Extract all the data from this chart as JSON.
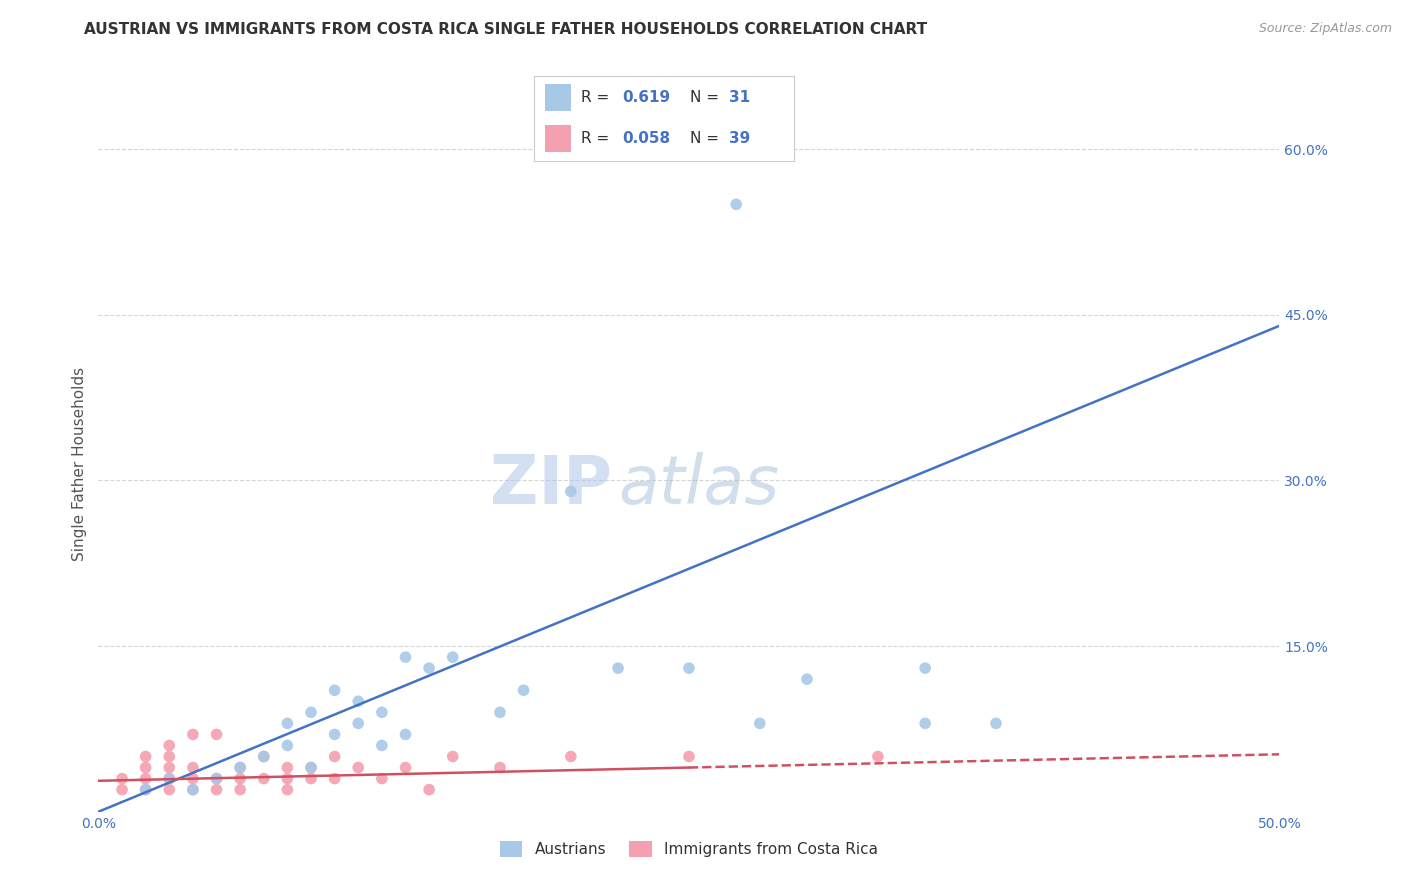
{
  "title": "AUSTRIAN VS IMMIGRANTS FROM COSTA RICA SINGLE FATHER HOUSEHOLDS CORRELATION CHART",
  "source": "Source: ZipAtlas.com",
  "ylabel": "Single Father Households",
  "xmin": 0.0,
  "xmax": 0.5,
  "ymin": 0.0,
  "ymax": 0.63,
  "yticks": [
    0.0,
    0.15,
    0.3,
    0.45,
    0.6
  ],
  "xticks": [
    0.0,
    0.1,
    0.2,
    0.3,
    0.4,
    0.5
  ],
  "blue_R": 0.619,
  "blue_N": 31,
  "pink_R": 0.058,
  "pink_N": 39,
  "blue_color": "#a8c8e8",
  "pink_color": "#f4a0b0",
  "blue_line_color": "#4472c4",
  "pink_line_color": "#d05060",
  "legend_label_blue": "Austrians",
  "legend_label_pink": "Immigrants from Costa Rica",
  "watermark_zip": "ZIP",
  "watermark_atlas": "atlas",
  "blue_scatter_x": [
    0.02,
    0.03,
    0.04,
    0.05,
    0.06,
    0.07,
    0.08,
    0.09,
    0.1,
    0.11,
    0.12,
    0.13,
    0.14,
    0.08,
    0.09,
    0.1,
    0.11,
    0.12,
    0.2,
    0.22,
    0.25,
    0.27,
    0.28,
    0.3,
    0.35,
    0.38,
    0.13,
    0.15,
    0.17,
    0.18,
    0.35
  ],
  "blue_scatter_y": [
    0.02,
    0.03,
    0.02,
    0.03,
    0.04,
    0.05,
    0.06,
    0.04,
    0.07,
    0.08,
    0.06,
    0.07,
    0.13,
    0.08,
    0.09,
    0.11,
    0.1,
    0.09,
    0.29,
    0.13,
    0.13,
    0.55,
    0.08,
    0.12,
    0.13,
    0.08,
    0.14,
    0.14,
    0.09,
    0.11,
    0.08
  ],
  "pink_scatter_x": [
    0.01,
    0.01,
    0.02,
    0.02,
    0.02,
    0.02,
    0.03,
    0.03,
    0.03,
    0.03,
    0.03,
    0.04,
    0.04,
    0.04,
    0.04,
    0.05,
    0.05,
    0.05,
    0.06,
    0.06,
    0.06,
    0.07,
    0.07,
    0.08,
    0.08,
    0.08,
    0.09,
    0.09,
    0.1,
    0.1,
    0.11,
    0.12,
    0.13,
    0.14,
    0.15,
    0.17,
    0.2,
    0.25,
    0.33
  ],
  "pink_scatter_y": [
    0.02,
    0.03,
    0.02,
    0.03,
    0.04,
    0.05,
    0.02,
    0.03,
    0.04,
    0.05,
    0.06,
    0.02,
    0.03,
    0.04,
    0.07,
    0.02,
    0.03,
    0.07,
    0.02,
    0.03,
    0.04,
    0.03,
    0.05,
    0.02,
    0.03,
    0.04,
    0.03,
    0.04,
    0.03,
    0.05,
    0.04,
    0.03,
    0.04,
    0.02,
    0.05,
    0.04,
    0.05,
    0.05,
    0.05
  ],
  "blue_line_x_start": 0.0,
  "blue_line_x_end": 0.5,
  "blue_line_y_start": 0.0,
  "blue_line_y_end": 0.44,
  "pink_line_x_start": 0.0,
  "pink_line_x_end": 0.5,
  "pink_line_y_start": 0.028,
  "pink_line_y_end": 0.052,
  "pink_line_solid_end": 0.25,
  "grid_color": "#cccccc",
  "background_color": "#ffffff",
  "title_color": "#333333",
  "tick_label_color": "#4472c4"
}
